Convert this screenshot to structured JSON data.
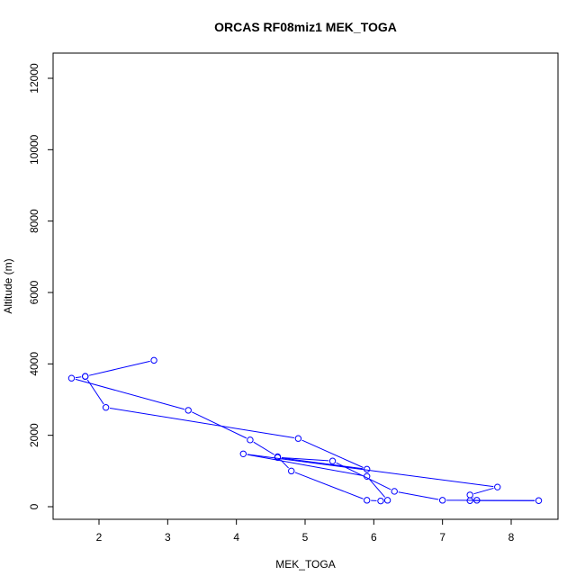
{
  "chart_data": {
    "type": "line",
    "title": "ORCAS RF08miz1 MEK_TOGA",
    "xlabel": "MEK_TOGA",
    "ylabel": "Altitude (m)",
    "xlim": [
      1.5,
      8.5
    ],
    "ylim": [
      0,
      12500
    ],
    "xticks": [
      "2",
      "3",
      "4",
      "5",
      "6",
      "7",
      "8"
    ],
    "yticks": [
      "0",
      "2000",
      "4000",
      "6000",
      "8000",
      "10000",
      "12000"
    ],
    "grid": false,
    "legend": "none",
    "marker": "open-circle",
    "color": "#0000ff",
    "series": [
      {
        "x": [
          2.8,
          1.8,
          1.6,
          3.3,
          4.2,
          4.6,
          4.8,
          5.9,
          6.1,
          6.2,
          5.9,
          4.1,
          7.8,
          7.4,
          7.5,
          7.4,
          8.4,
          7.0,
          6.3,
          5.4,
          4.6,
          5.9,
          4.9,
          2.1,
          1.8
        ],
        "y": [
          4100,
          3650,
          3600,
          2700,
          1870,
          1400,
          1000,
          180,
          160,
          180,
          850,
          1480,
          550,
          330,
          180,
          170,
          170,
          180,
          430,
          1280,
          1380,
          1050,
          1910,
          2780,
          3650
        ]
      }
    ]
  }
}
